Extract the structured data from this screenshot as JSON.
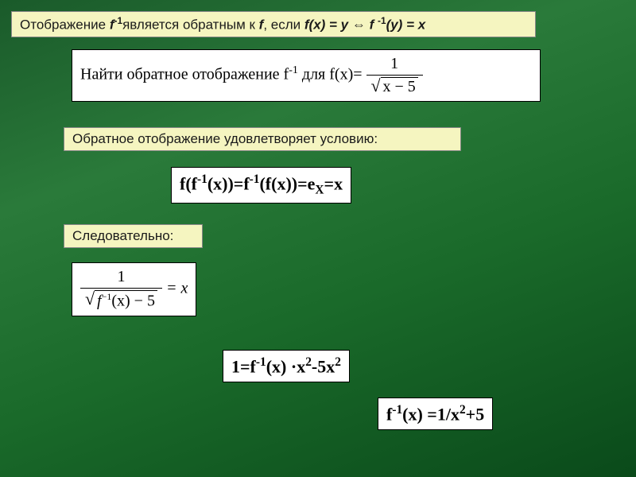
{
  "box1": {
    "pre": "Отображение ",
    "f1": "f",
    "sup1": "-1",
    "mid1": "является обратным к ",
    "f2": "f",
    "mid2": ", если ",
    "eq_fx": "f",
    "eq_x": "(x) = y",
    "iff": " ⇔ ",
    "eq_finv": "f ",
    "sup2": "-1",
    "eq_y": "(y) = x"
  },
  "formula1": {
    "text_pre": "Найти обратное отображение f",
    "text_sup": "-1",
    "text_mid": " для f(x)= ",
    "frac_num": "1",
    "frac_den_inner": "x − 5"
  },
  "box2": {
    "text": "Обратное отображение удовлетворяет условию:"
  },
  "formula2": {
    "text": "f(f",
    "sup1": "-1",
    "text2": "(x))=f",
    "sup2": "-1",
    "text3": "(f(x))=e",
    "sub": "X",
    "text4": "=x"
  },
  "box3": {
    "text": "Следовательно:"
  },
  "formula3": {
    "num": "1",
    "den_f": "f",
    "den_sup": "−1",
    "den_rest": "(x) − 5",
    "eq": " = x"
  },
  "formula4": {
    "text": "1=f",
    "sup1": "-1",
    "text2": "(x) ·x",
    "sup2": "2",
    "text3": "-5x",
    "sup3": "2"
  },
  "formula5": {
    "text": "f",
    "sup1": "-1",
    "text2": "(x) =1/x",
    "sup2": "2",
    "text3": "+5"
  },
  "colors": {
    "yellow_box_bg": "#f5f5c0",
    "formula_bg": "#ffffff",
    "background_gradient": [
      "#1a5a2a",
      "#2a7a3a",
      "#1a6a2a",
      "#0a4a1a"
    ]
  }
}
